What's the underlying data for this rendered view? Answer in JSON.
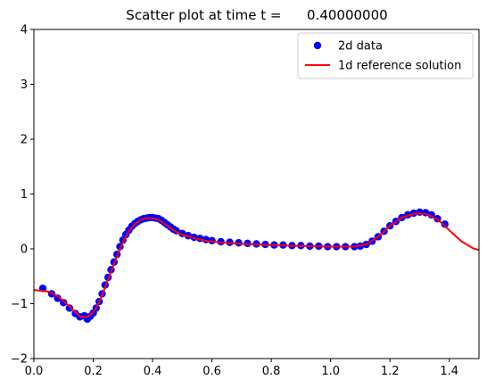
{
  "chart_data": {
    "type": "scatter",
    "title": "Scatter plot at time t =      0.40000000",
    "xlabel": "",
    "ylabel": "",
    "xlim": [
      0.0,
      1.5
    ],
    "ylim": [
      -2,
      4
    ],
    "xticks": [
      "0.0",
      "0.2",
      "0.4",
      "0.6",
      "0.8",
      "1.0",
      "1.2",
      "1.4"
    ],
    "yticks": [
      "−2",
      "−1",
      "0",
      "1",
      "2",
      "3",
      "4"
    ],
    "xtick_values": [
      0.0,
      0.2,
      0.4,
      0.6,
      0.8,
      1.0,
      1.2,
      1.4
    ],
    "ytick_values": [
      -2,
      -1,
      0,
      1,
      2,
      3,
      4
    ],
    "grid": false,
    "legend_position": "top-right",
    "series": [
      {
        "name": "2d data",
        "kind": "scatter",
        "color": "#0000ff",
        "points": [
          [
            0.03,
            -0.72
          ],
          [
            0.06,
            -0.82
          ],
          [
            0.08,
            -0.9
          ],
          [
            0.1,
            -0.98
          ],
          [
            0.12,
            -1.08
          ],
          [
            0.14,
            -1.18
          ],
          [
            0.155,
            -1.24
          ],
          [
            0.17,
            -1.22
          ],
          [
            0.18,
            -1.28
          ],
          [
            0.19,
            -1.23
          ],
          [
            0.2,
            -1.17
          ],
          [
            0.21,
            -1.08
          ],
          [
            0.22,
            -0.96
          ],
          [
            0.23,
            -0.82
          ],
          [
            0.24,
            -0.66
          ],
          [
            0.25,
            -0.52
          ],
          [
            0.26,
            -0.38
          ],
          [
            0.27,
            -0.24
          ],
          [
            0.28,
            -0.1
          ],
          [
            0.29,
            0.04
          ],
          [
            0.3,
            0.16
          ],
          [
            0.31,
            0.26
          ],
          [
            0.32,
            0.34
          ],
          [
            0.33,
            0.41
          ],
          [
            0.34,
            0.46
          ],
          [
            0.35,
            0.5
          ],
          [
            0.36,
            0.53
          ],
          [
            0.37,
            0.55
          ],
          [
            0.38,
            0.56
          ],
          [
            0.39,
            0.57
          ],
          [
            0.4,
            0.57
          ],
          [
            0.41,
            0.56
          ],
          [
            0.42,
            0.55
          ],
          [
            0.43,
            0.52
          ],
          [
            0.44,
            0.48
          ],
          [
            0.45,
            0.44
          ],
          [
            0.46,
            0.4
          ],
          [
            0.47,
            0.36
          ],
          [
            0.48,
            0.33
          ],
          [
            0.5,
            0.28
          ],
          [
            0.52,
            0.24
          ],
          [
            0.54,
            0.21
          ],
          [
            0.56,
            0.19
          ],
          [
            0.58,
            0.17
          ],
          [
            0.6,
            0.15
          ],
          [
            0.63,
            0.13
          ],
          [
            0.66,
            0.12
          ],
          [
            0.69,
            0.11
          ],
          [
            0.72,
            0.1
          ],
          [
            0.75,
            0.09
          ],
          [
            0.78,
            0.08
          ],
          [
            0.81,
            0.07
          ],
          [
            0.84,
            0.07
          ],
          [
            0.87,
            0.06
          ],
          [
            0.9,
            0.06
          ],
          [
            0.93,
            0.05
          ],
          [
            0.96,
            0.05
          ],
          [
            0.99,
            0.04
          ],
          [
            1.02,
            0.04
          ],
          [
            1.05,
            0.04
          ],
          [
            1.08,
            0.04
          ],
          [
            1.1,
            0.05
          ],
          [
            1.12,
            0.08
          ],
          [
            1.14,
            0.14
          ],
          [
            1.16,
            0.22
          ],
          [
            1.18,
            0.32
          ],
          [
            1.2,
            0.42
          ],
          [
            1.22,
            0.5
          ],
          [
            1.24,
            0.57
          ],
          [
            1.26,
            0.62
          ],
          [
            1.28,
            0.65
          ],
          [
            1.3,
            0.67
          ],
          [
            1.32,
            0.66
          ],
          [
            1.34,
            0.62
          ],
          [
            1.36,
            0.55
          ],
          [
            1.385,
            0.45
          ]
        ]
      },
      {
        "name": "1d reference solution",
        "kind": "line",
        "color": "#ff0000",
        "points": [
          [
            0.0,
            -0.75
          ],
          [
            0.05,
            -0.78
          ],
          [
            0.08,
            -0.86
          ],
          [
            0.1,
            -0.95
          ],
          [
            0.12,
            -1.05
          ],
          [
            0.14,
            -1.16
          ],
          [
            0.16,
            -1.24
          ],
          [
            0.18,
            -1.24
          ],
          [
            0.2,
            -1.16
          ],
          [
            0.22,
            -0.98
          ],
          [
            0.24,
            -0.7
          ],
          [
            0.26,
            -0.42
          ],
          [
            0.28,
            -0.14
          ],
          [
            0.3,
            0.12
          ],
          [
            0.32,
            0.32
          ],
          [
            0.34,
            0.45
          ],
          [
            0.36,
            0.53
          ],
          [
            0.38,
            0.56
          ],
          [
            0.4,
            0.56
          ],
          [
            0.42,
            0.53
          ],
          [
            0.44,
            0.46
          ],
          [
            0.46,
            0.38
          ],
          [
            0.48,
            0.31
          ],
          [
            0.5,
            0.26
          ],
          [
            0.55,
            0.18
          ],
          [
            0.6,
            0.13
          ],
          [
            0.7,
            0.09
          ],
          [
            0.8,
            0.07
          ],
          [
            0.9,
            0.05
          ],
          [
            1.0,
            0.04
          ],
          [
            1.08,
            0.04
          ],
          [
            1.12,
            0.08
          ],
          [
            1.16,
            0.22
          ],
          [
            1.2,
            0.42
          ],
          [
            1.24,
            0.57
          ],
          [
            1.28,
            0.64
          ],
          [
            1.32,
            0.64
          ],
          [
            1.36,
            0.54
          ],
          [
            1.4,
            0.34
          ],
          [
            1.44,
            0.14
          ],
          [
            1.48,
            0.01
          ],
          [
            1.5,
            -0.02
          ]
        ]
      }
    ]
  }
}
